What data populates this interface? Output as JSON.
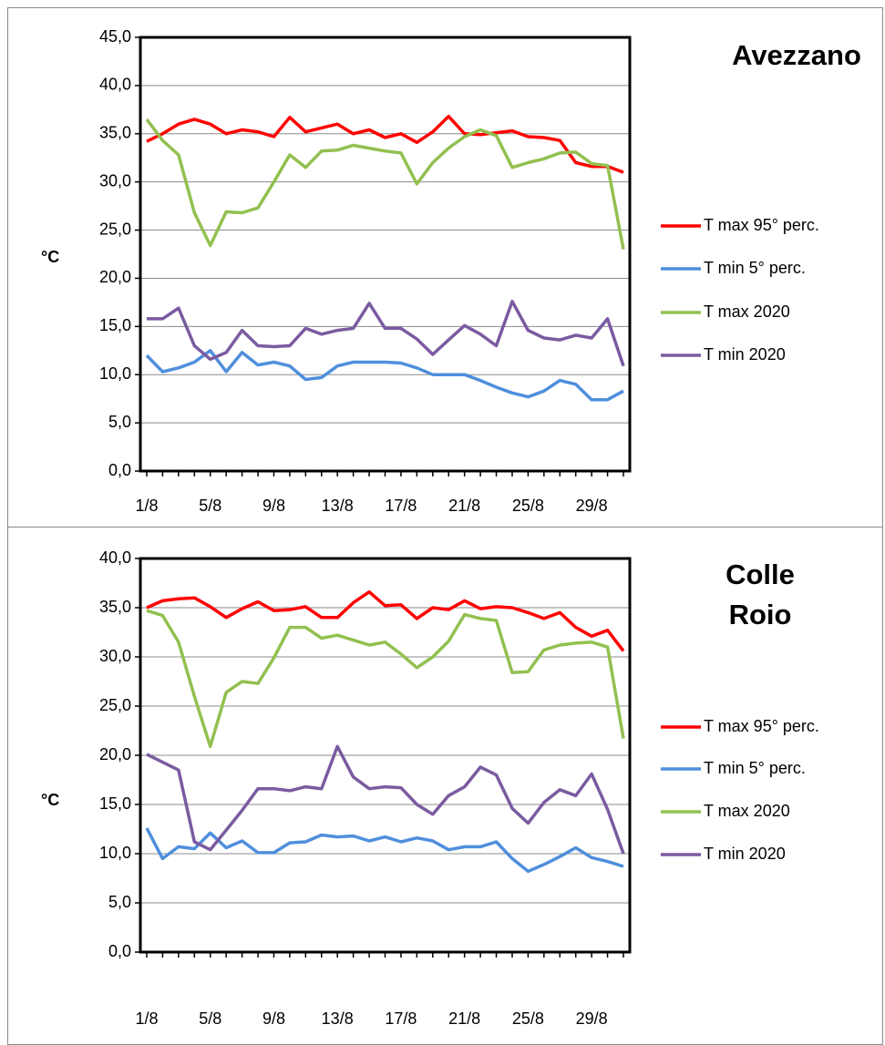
{
  "chart_data": [
    {
      "type": "line",
      "title": "Avezzano",
      "y_label": "°C",
      "categories": [
        "1/8",
        null,
        null,
        null,
        "5/8",
        null,
        null,
        null,
        "9/8",
        null,
        null,
        null,
        "13/8",
        null,
        null,
        null,
        "17/8",
        null,
        null,
        null,
        "21/8",
        null,
        null,
        null,
        "25/8",
        null,
        null,
        null,
        "29/8",
        null,
        null
      ],
      "ylim": [
        0,
        45
      ],
      "yticks": [
        {
          "value": 0,
          "label": "0,0"
        },
        {
          "value": 5,
          "label": "5,0"
        },
        {
          "value": 10,
          "label": "10,0"
        },
        {
          "value": 15,
          "label": "15,0"
        },
        {
          "value": 20,
          "label": "20,0"
        },
        {
          "value": 25,
          "label": "25,0"
        },
        {
          "value": 30,
          "label": "30,0"
        },
        {
          "value": 35,
          "label": "35,0"
        },
        {
          "value": 40,
          "label": "40,0"
        },
        {
          "value": 45,
          "label": "45,0"
        }
      ],
      "grid": true,
      "legend": "right",
      "series": [
        {
          "name": "T max 95° perc.",
          "color": "#ff0000",
          "values": [
            34.2,
            35.0,
            36.0,
            36.5,
            36.0,
            35.0,
            35.4,
            35.2,
            34.7,
            36.7,
            35.2,
            35.6,
            36.0,
            35.0,
            35.4,
            34.6,
            35.0,
            34.1,
            35.2,
            36.8,
            35.0,
            34.9,
            35.1,
            35.3,
            34.7,
            34.6,
            34.3,
            32.0,
            31.6,
            31.6,
            31.0
          ]
        },
        {
          "name": "T min 5° perc.",
          "color": "#4f8fdc",
          "values": [
            12.0,
            10.3,
            10.7,
            11.3,
            12.5,
            10.3,
            12.3,
            11.0,
            11.3,
            10.9,
            9.5,
            9.7,
            10.9,
            11.3,
            11.3,
            11.3,
            11.2,
            10.7,
            10.0,
            10.0,
            10.0,
            9.4,
            8.7,
            8.1,
            7.7,
            8.3,
            9.4,
            9.0,
            7.4,
            7.4,
            8.3
          ]
        },
        {
          "name": "T max 2020",
          "color": "#92c050",
          "values": [
            36.5,
            34.3,
            32.8,
            26.8,
            23.4,
            26.9,
            26.8,
            27.3,
            30.0,
            32.8,
            31.5,
            33.2,
            33.3,
            33.8,
            33.5,
            33.2,
            33.0,
            29.8,
            32.0,
            33.5,
            34.7,
            35.4,
            34.8,
            31.5,
            32.0,
            32.4,
            33.0,
            33.1,
            31.9,
            31.7,
            23.0
          ]
        },
        {
          "name": "T min 2020",
          "color": "#7a5ba0",
          "values": [
            15.8,
            15.8,
            16.9,
            13.0,
            11.6,
            12.3,
            14.6,
            13.0,
            12.9,
            13.0,
            14.8,
            14.2,
            14.6,
            14.8,
            17.4,
            14.8,
            14.8,
            13.7,
            12.1,
            13.6,
            15.1,
            14.2,
            13.0,
            17.6,
            14.6,
            13.8,
            13.6,
            14.1,
            13.8,
            15.8,
            10.9
          ]
        }
      ]
    },
    {
      "type": "line",
      "title": "Colle Roio",
      "y_label": "°C",
      "categories": [
        "1/8",
        null,
        null,
        null,
        "5/8",
        null,
        null,
        null,
        "9/8",
        null,
        null,
        null,
        "13/8",
        null,
        null,
        null,
        "17/8",
        null,
        null,
        null,
        "21/8",
        null,
        null,
        null,
        "25/8",
        null,
        null,
        null,
        "29/8",
        null,
        null
      ],
      "ylim": [
        0,
        40
      ],
      "yticks": [
        {
          "value": 0,
          "label": "0,0"
        },
        {
          "value": 5,
          "label": "5,0"
        },
        {
          "value": 10,
          "label": "10,0"
        },
        {
          "value": 15,
          "label": "15,0"
        },
        {
          "value": 20,
          "label": "20,0"
        },
        {
          "value": 25,
          "label": "25,0"
        },
        {
          "value": 30,
          "label": "30,0"
        },
        {
          "value": 35,
          "label": "35,0"
        },
        {
          "value": 40,
          "label": "40,0"
        }
      ],
      "grid": true,
      "legend": "right",
      "series": [
        {
          "name": "T max 95° perc.",
          "color": "#ff0000",
          "values": [
            35.0,
            35.7,
            35.9,
            36.0,
            35.1,
            34.0,
            34.9,
            35.6,
            34.7,
            34.8,
            35.1,
            34.0,
            34.0,
            35.5,
            36.6,
            35.2,
            35.3,
            33.9,
            35.0,
            34.8,
            35.7,
            34.9,
            35.1,
            35.0,
            34.5,
            33.9,
            34.5,
            33.0,
            32.1,
            32.7,
            30.6
          ]
        },
        {
          "name": "T min 5° perc.",
          "color": "#4f8fdc",
          "values": [
            12.6,
            9.5,
            10.7,
            10.5,
            12.1,
            10.6,
            11.3,
            10.1,
            10.1,
            11.1,
            11.2,
            11.9,
            11.7,
            11.8,
            11.3,
            11.7,
            11.2,
            11.6,
            11.3,
            10.4,
            10.7,
            10.7,
            11.2,
            9.5,
            8.2,
            8.9,
            9.7,
            10.6,
            9.6,
            9.2,
            8.7
          ]
        },
        {
          "name": "T max 2020",
          "color": "#92c050",
          "values": [
            34.7,
            34.2,
            31.5,
            26.0,
            20.9,
            26.4,
            27.5,
            27.3,
            29.9,
            33.0,
            33.0,
            31.9,
            32.2,
            31.7,
            31.2,
            31.5,
            30.3,
            28.9,
            30.0,
            31.6,
            34.3,
            33.9,
            33.7,
            28.4,
            28.5,
            30.7,
            31.2,
            31.4,
            31.5,
            31.0,
            21.7
          ]
        },
        {
          "name": "T min 2020",
          "color": "#7a5ba0",
          "values": [
            20.1,
            19.3,
            18.5,
            11.2,
            10.4,
            12.4,
            14.4,
            16.6,
            16.6,
            16.4,
            16.8,
            16.6,
            20.9,
            17.8,
            16.6,
            16.8,
            16.7,
            15.0,
            14.0,
            15.9,
            16.8,
            18.8,
            18.0,
            14.6,
            13.1,
            15.2,
            16.5,
            15.9,
            18.1,
            14.5,
            10.0
          ]
        }
      ]
    }
  ]
}
